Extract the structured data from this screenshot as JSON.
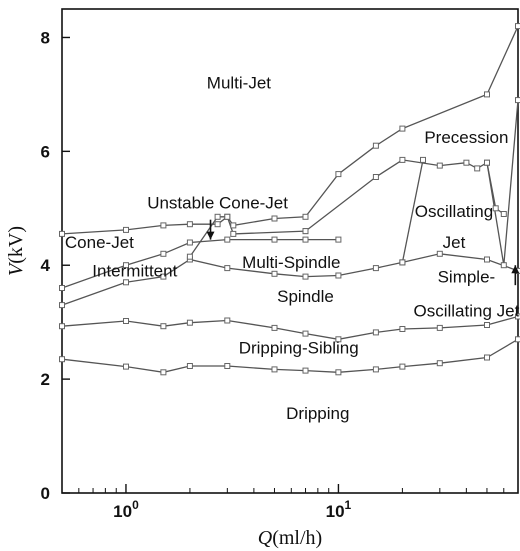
{
  "chart_data": {
    "type": "line",
    "x_scale": "log",
    "xlim": [
      0.5,
      70
    ],
    "ylim": [
      0,
      8.5
    ],
    "xlabel_var": "Q",
    "xlabel_unit": "(ml/h)",
    "ylabel_var": "V",
    "ylabel_unit": "(kV)",
    "x_ticks": [
      {
        "value": 1,
        "base": "10",
        "exp": "0"
      },
      {
        "value": 10,
        "base": "10",
        "exp": "1"
      }
    ],
    "y_ticks": [
      {
        "value": 0,
        "label": "0"
      },
      {
        "value": 2,
        "label": "2"
      },
      {
        "value": 4,
        "label": "4"
      },
      {
        "value": 6,
        "label": "6"
      },
      {
        "value": 8,
        "label": "8"
      }
    ],
    "grid": false,
    "series": [
      {
        "x": [
          0.5,
          1.0,
          1.5,
          2.0,
          3.0,
          5.0,
          7.0,
          10.0,
          15.0,
          20.0,
          30.0,
          50.0,
          70.0
        ],
        "y": [
          2.35,
          2.22,
          2.12,
          2.23,
          2.23,
          2.17,
          2.15,
          2.12,
          2.17,
          2.22,
          2.28,
          2.38,
          2.7
        ]
      },
      {
        "x": [
          0.5,
          1.0,
          1.5,
          2.0,
          3.0,
          5.0,
          7.0,
          10.0,
          15.0,
          20.0,
          30.0,
          50.0,
          70.0
        ],
        "y": [
          2.93,
          3.02,
          2.93,
          2.99,
          3.03,
          2.9,
          2.8,
          2.7,
          2.82,
          2.88,
          2.9,
          2.95,
          3.1
        ]
      },
      {
        "x": [
          0.5,
          1.0,
          1.5,
          2.0,
          3.0,
          5.0,
          7.0,
          10.0,
          15.0,
          20.0,
          30.0,
          50.0,
          70.0
        ],
        "y": [
          3.3,
          3.7,
          3.8,
          4.1,
          3.95,
          3.85,
          3.8,
          3.82,
          3.95,
          4.05,
          4.2,
          4.1,
          3.9
        ]
      },
      {
        "x": [
          0.5,
          1.0,
          1.5,
          2.0,
          3.0,
          5.0,
          7.0,
          10.0
        ],
        "y": [
          3.6,
          4.0,
          4.2,
          4.4,
          4.45,
          4.45,
          4.45,
          4.45
        ]
      },
      {
        "x": [
          0.5,
          1.0,
          1.5,
          2.0,
          2.7,
          3.0,
          3.2,
          5.0,
          7.0,
          10.0,
          15.0,
          20.0,
          50.0,
          70.0
        ],
        "y": [
          4.55,
          4.62,
          4.7,
          4.72,
          4.72,
          4.85,
          4.7,
          4.82,
          4.85,
          5.6,
          6.1,
          6.4,
          7.0,
          8.2
        ]
      },
      {
        "x": [
          2.0,
          2.7,
          3.0,
          3.2,
          7.0
        ],
        "y": [
          4.15,
          4.85,
          4.85,
          4.55,
          4.6
        ]
      },
      {
        "x": [
          7.0,
          15.0,
          20.0,
          30.0,
          40.0,
          45.0,
          50.0,
          60.0,
          70.0
        ],
        "y": [
          4.6,
          5.55,
          5.85,
          5.75,
          5.8,
          5.7,
          5.8,
          4.0,
          6.9
        ]
      },
      {
        "x": [
          20.0,
          25.0
        ],
        "y": [
          4.05,
          5.85
        ]
      },
      {
        "x": [
          50.0,
          55.0,
          60.0
        ],
        "y": [
          5.8,
          5.0,
          4.9
        ]
      }
    ],
    "region_labels": [
      {
        "text": "Multi-Jet",
        "x": 3.4,
        "y": 7.1
      },
      {
        "text": "Precession",
        "x": 40.0,
        "y": 6.15
      },
      {
        "text": "Unstable Cone-Jet",
        "x": 2.7,
        "y": 5.0
      },
      {
        "text": "Oscillating",
        "x": 35.0,
        "y": 4.85
      },
      {
        "text": "Jet",
        "x": 35.0,
        "y": 4.3
      },
      {
        "text": "Cone-Jet",
        "x": 0.75,
        "y": 4.3
      },
      {
        "text": "Multi-Spindle",
        "x": 6.0,
        "y": 3.95
      },
      {
        "text": "Intermittent",
        "x": 1.1,
        "y": 3.8
      },
      {
        "text": "Simple-",
        "x": 40.0,
        "y": 3.7
      },
      {
        "text": "Oscillating Jet",
        "x": 40.0,
        "y": 3.1
      },
      {
        "text": "Spindle",
        "x": 7.0,
        "y": 3.35
      },
      {
        "text": "Dripping-Sibling",
        "x": 6.5,
        "y": 2.45
      },
      {
        "text": "Dripping",
        "x": 8.0,
        "y": 1.3
      }
    ],
    "arrows": [
      {
        "x": 2.5,
        "y_from": 4.8,
        "y_to": 4.45
      },
      {
        "x": 68.0,
        "y_from": 3.65,
        "y_to": 4.0
      }
    ]
  }
}
